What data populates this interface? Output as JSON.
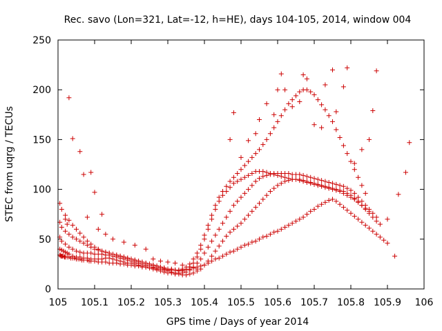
{
  "chart_data": {
    "type": "scatter",
    "title": "Rec. savo (Lon=321, Lat=-12, h=HE), days 104-105, 2014, window 004",
    "xlabel": "GPS time / Days of year 2014",
    "ylabel": "STEC from uqrg / TECUs",
    "xlim": [
      105,
      106
    ],
    "ylim": [
      0,
      250
    ],
    "xticks": [
      "105",
      "105.1",
      "105.2",
      "105.3",
      "105.4",
      "105.5",
      "105.6",
      "105.7",
      "105.8",
      "105.9",
      "106"
    ],
    "yticks": [
      "0",
      "50",
      "100",
      "150",
      "200",
      "250"
    ],
    "grid": false,
    "legend": "none",
    "marker": "+",
    "color": "#cc0000",
    "series": [
      {
        "x": [
          105.005,
          105.006,
          105.008,
          105.01,
          105.012,
          105.015,
          105.018,
          105.02,
          105.025,
          105.03,
          105.035,
          105.04,
          105.045,
          105.05,
          105.055,
          105.06,
          105.065,
          105.07,
          105.08,
          105.085,
          105.09,
          105.1,
          105.11,
          105.12,
          105.13,
          105.14,
          105.15,
          105.16,
          105.17,
          105.18,
          105.19,
          105.2,
          105.21,
          105.22,
          105.23,
          105.24,
          105.25,
          105.26,
          105.27,
          105.28,
          105.29,
          105.3,
          105.31,
          105.32,
          105.33,
          105.34,
          105.35,
          105.36,
          105.37,
          105.38,
          105.39,
          105.4,
          105.41,
          105.42,
          105.43,
          105.44,
          105.45,
          105.46,
          105.47,
          105.48,
          105.49,
          105.5,
          105.51,
          105.52,
          105.53,
          105.54,
          105.55,
          105.56,
          105.57,
          105.58,
          105.59,
          105.6,
          105.61,
          105.62,
          105.63,
          105.64,
          105.65,
          105.66,
          105.67,
          105.68,
          105.69,
          105.7,
          105.71,
          105.72,
          105.73,
          105.74,
          105.75,
          105.76,
          105.77,
          105.78,
          105.79,
          105.8,
          105.81,
          105.82,
          105.83,
          105.84,
          105.85,
          105.86,
          105.87,
          105.88,
          105.89,
          105.9
        ],
        "y": [
          34,
          34,
          33,
          33,
          33,
          33,
          32,
          32,
          32,
          32,
          31,
          31,
          31,
          30,
          30,
          30,
          29,
          29,
          29,
          28,
          28,
          28,
          27,
          27,
          27,
          26,
          26,
          26,
          25,
          25,
          24,
          24,
          23,
          23,
          22,
          22,
          21,
          21,
          20,
          20,
          20,
          19,
          19,
          19,
          19,
          19,
          20,
          20,
          21,
          22,
          23,
          24,
          26,
          28,
          30,
          31,
          33,
          35,
          37,
          38,
          40,
          42,
          44,
          45,
          47,
          48,
          50,
          52,
          53,
          55,
          57,
          58,
          60,
          62,
          64,
          66,
          68,
          70,
          72,
          75,
          78,
          80,
          83,
          85,
          87,
          89,
          90,
          88,
          85,
          82,
          79,
          76,
          73,
          70,
          67,
          64,
          61,
          58,
          55,
          52,
          49,
          46
        ]
      },
      {
        "x": [
          105.005,
          105.01,
          105.015,
          105.02,
          105.025,
          105.03,
          105.04,
          105.05,
          105.06,
          105.07,
          105.08,
          105.09,
          105.1,
          105.11,
          105.12,
          105.13,
          105.14,
          105.15,
          105.16,
          105.17,
          105.18,
          105.19,
          105.2,
          105.21,
          105.22,
          105.23,
          105.24,
          105.25,
          105.26,
          105.27,
          105.28,
          105.29,
          105.3,
          105.31,
          105.32,
          105.33,
          105.34,
          105.35,
          105.36,
          105.37,
          105.38,
          105.39,
          105.4,
          105.41,
          105.42,
          105.43,
          105.44,
          105.45,
          105.46,
          105.47,
          105.48,
          105.49,
          105.5,
          105.51,
          105.52,
          105.53,
          105.54,
          105.55,
          105.56,
          105.57,
          105.58,
          105.59,
          105.6,
          105.61,
          105.62,
          105.63,
          105.64,
          105.65,
          105.66,
          105.67,
          105.68,
          105.69,
          105.7,
          105.71,
          105.72,
          105.73,
          105.74,
          105.75,
          105.76,
          105.77,
          105.78,
          105.79,
          105.8,
          105.81,
          105.82,
          105.83,
          105.84,
          105.85,
          105.86,
          105.87,
          105.88
        ],
        "y": [
          40,
          39,
          38,
          37,
          36,
          35,
          33,
          32,
          32,
          31,
          31,
          30,
          30,
          30,
          30,
          31,
          31,
          30,
          29,
          28,
          27,
          26,
          26,
          25,
          24,
          23,
          22,
          21,
          20,
          19,
          18,
          17,
          16,
          16,
          15,
          15,
          14,
          14,
          15,
          16,
          18,
          20,
          24,
          28,
          33,
          38,
          43,
          48,
          53,
          57,
          60,
          63,
          66,
          70,
          74,
          78,
          82,
          86,
          90,
          94,
          98,
          101,
          104,
          106,
          108,
          109,
          110,
          110,
          110,
          109,
          108,
          107,
          106,
          105,
          104,
          103,
          102,
          101,
          100,
          99,
          98,
          96,
          94,
          91,
          88,
          84,
          80,
          76,
          72,
          68,
          65
        ]
      },
      {
        "x": [
          105.005,
          105.01,
          105.02,
          105.03,
          105.04,
          105.05,
          105.06,
          105.07,
          105.08,
          105.09,
          105.1,
          105.11,
          105.12,
          105.13,
          105.14,
          105.15,
          105.16,
          105.17,
          105.18,
          105.19,
          105.2,
          105.21,
          105.22,
          105.23,
          105.24,
          105.25,
          105.26,
          105.27,
          105.28,
          105.29,
          105.3,
          105.31,
          105.32,
          105.33,
          105.34,
          105.35,
          105.36,
          105.37,
          105.38,
          105.39,
          105.4,
          105.41,
          105.42,
          105.43,
          105.44,
          105.45,
          105.46,
          105.47,
          105.48,
          105.49,
          105.5,
          105.51,
          105.52,
          105.53,
          105.54,
          105.55,
          105.56,
          105.57,
          105.58,
          105.59,
          105.6,
          105.61,
          105.62,
          105.63,
          105.64,
          105.65,
          105.66,
          105.67,
          105.68,
          105.69,
          105.7,
          105.71,
          105.72,
          105.73,
          105.74,
          105.75,
          105.76,
          105.77,
          105.78,
          105.79,
          105.8,
          105.81,
          105.82,
          105.83,
          105.84,
          105.85,
          105.86,
          105.87
        ],
        "y": [
          52,
          48,
          45,
          42,
          40,
          38,
          37,
          36,
          36,
          36,
          35,
          35,
          35,
          34,
          34,
          33,
          32,
          31,
          30,
          29,
          28,
          27,
          26,
          25,
          24,
          23,
          22,
          21,
          20,
          19,
          18,
          17,
          16,
          16,
          16,
          17,
          19,
          22,
          26,
          30,
          36,
          42,
          48,
          54,
          60,
          66,
          72,
          78,
          84,
          88,
          92,
          96,
          100,
          104,
          108,
          111,
          113,
          114,
          115,
          116,
          116,
          116,
          116,
          116,
          115,
          115,
          115,
          114,
          113,
          112,
          111,
          110,
          109,
          108,
          107,
          106,
          105,
          104,
          103,
          101,
          99,
          96,
          92,
          88,
          84,
          80,
          76,
          72
        ]
      },
      {
        "x": [
          105.005,
          105.01,
          105.02,
          105.03,
          105.04,
          105.05,
          105.06,
          105.07,
          105.08,
          105.09,
          105.1,
          105.11,
          105.12,
          105.13,
          105.14,
          105.15,
          105.16,
          105.17,
          105.18,
          105.19,
          105.2,
          105.21,
          105.22,
          105.23,
          105.24,
          105.25,
          105.26,
          105.27,
          105.28,
          105.29,
          105.3,
          105.31,
          105.32,
          105.33,
          105.34,
          105.35,
          105.36,
          105.37,
          105.38,
          105.39,
          105.4,
          105.41,
          105.42,
          105.43,
          105.44,
          105.45,
          105.46,
          105.47,
          105.48,
          105.49,
          105.5,
          105.51,
          105.52,
          105.53,
          105.54,
          105.55,
          105.56,
          105.57,
          105.58,
          105.59,
          105.6,
          105.61,
          105.62,
          105.63,
          105.64,
          105.65,
          105.66,
          105.67,
          105.68,
          105.69,
          105.7,
          105.71,
          105.72,
          105.73,
          105.74,
          105.75,
          105.76,
          105.77,
          105.78,
          105.79,
          105.8,
          105.81,
          105.82,
          105.83,
          105.84,
          105.85
        ],
        "y": [
          67,
          62,
          58,
          55,
          52,
          50,
          48,
          46,
          44,
          42,
          40,
          39,
          38,
          37,
          36,
          35,
          34,
          33,
          32,
          31,
          30,
          29,
          28,
          27,
          26,
          25,
          24,
          23,
          22,
          21,
          20,
          19,
          19,
          18,
          18,
          19,
          22,
          26,
          32,
          40,
          50,
          60,
          70,
          80,
          88,
          94,
          98,
          102,
          106,
          108,
          110,
          112,
          114,
          116,
          118,
          118,
          118,
          117,
          116,
          115,
          114,
          113,
          112,
          111,
          110,
          110,
          109,
          108,
          107,
          106,
          105,
          104,
          103,
          102,
          101,
          100,
          99,
          98,
          96,
          94,
          92,
          90,
          87,
          84,
          81,
          78
        ]
      },
      {
        "x": [
          105.005,
          105.01,
          105.02,
          105.03,
          105.04,
          105.05,
          105.06,
          105.07,
          105.08,
          105.09,
          105.1,
          105.11,
          105.12,
          105.13,
          105.14,
          105.15,
          105.16,
          105.17,
          105.18,
          105.19,
          105.2,
          105.21,
          105.22,
          105.23,
          105.24,
          105.25,
          105.26,
          105.27,
          105.28,
          105.29,
          105.3,
          105.31,
          105.32,
          105.33,
          105.34,
          105.35,
          105.36,
          105.37,
          105.38,
          105.39,
          105.4,
          105.41,
          105.42,
          105.43,
          105.44,
          105.45,
          105.46,
          105.47,
          105.48,
          105.49,
          105.5,
          105.51,
          105.52,
          105.53,
          105.54,
          105.55,
          105.56,
          105.57,
          105.58,
          105.59,
          105.6,
          105.61,
          105.62,
          105.63,
          105.64,
          105.65,
          105.66,
          105.67,
          105.68,
          105.69,
          105.7,
          105.71,
          105.72,
          105.73,
          105.74,
          105.75,
          105.76,
          105.77,
          105.78,
          105.79,
          105.8,
          105.81,
          105.82,
          105.83,
          105.84
        ],
        "y": [
          86,
          80,
          74,
          69,
          64,
          60,
          56,
          52,
          48,
          45,
          42,
          40,
          38,
          37,
          36,
          35,
          34,
          33,
          32,
          31,
          30,
          29,
          28,
          27,
          26,
          25,
          24,
          23,
          22,
          21,
          20,
          20,
          19,
          19,
          20,
          22,
          25,
          30,
          36,
          44,
          54,
          64,
          74,
          84,
          92,
          98,
          103,
          108,
          112,
          116,
          120,
          124,
          128,
          132,
          136,
          140,
          145,
          150,
          156,
          162,
          168,
          174,
          180,
          186,
          190,
          194,
          198,
          200,
          200,
          198,
          195,
          190,
          185,
          180,
          174,
          168,
          160,
          152,
          144,
          136,
          128,
          120,
          112,
          104,
          96
        ]
      },
      {
        "x": [
          105.03,
          105.06,
          105.09,
          105.1,
          105.12,
          105.04,
          105.07,
          105.02,
          105.025,
          105.08,
          105.11,
          105.13,
          105.15,
          105.18,
          105.21,
          105.24,
          105.26,
          105.28,
          105.3,
          105.32,
          105.34,
          105.36,
          105.38,
          105.47,
          105.48,
          105.5,
          105.52,
          105.54,
          105.55,
          105.57,
          105.59,
          105.6,
          105.61,
          105.62,
          105.64,
          105.66,
          105.67,
          105.68,
          105.7,
          105.72,
          105.73,
          105.75,
          105.76,
          105.78,
          105.79,
          105.81,
          105.83,
          105.85,
          105.86,
          105.87,
          105.9,
          105.92,
          105.93,
          105.95,
          105.96
        ],
        "y": [
          192,
          138,
          117,
          97,
          75,
          151,
          115,
          70,
          65,
          72,
          60,
          55,
          50,
          47,
          44,
          40,
          30,
          28,
          27,
          26,
          24,
          22,
          20,
          150,
          177,
          132,
          149,
          156,
          170,
          186,
          175,
          200,
          216,
          200,
          183,
          188,
          215,
          211,
          165,
          162,
          205,
          220,
          178,
          203,
          222,
          126,
          140,
          150,
          179,
          219,
          70,
          33,
          95,
          117,
          147
        ]
      }
    ]
  }
}
